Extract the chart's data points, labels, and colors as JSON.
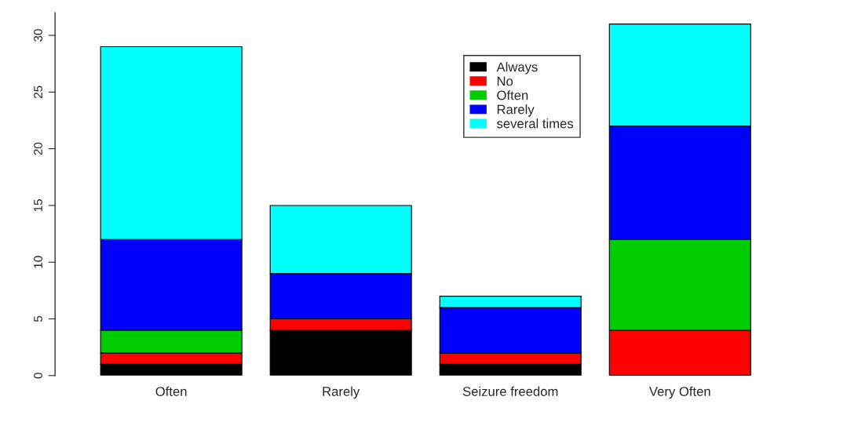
{
  "chart_data": {
    "type": "bar",
    "stacked": true,
    "categories": [
      "Often",
      "Rarely",
      "Seizure freedom",
      "Very Often"
    ],
    "series": [
      {
        "name": "Always",
        "color": "#000000",
        "values": [
          1,
          4,
          1,
          0
        ]
      },
      {
        "name": "No",
        "color": "#ff0000",
        "values": [
          1,
          1,
          1,
          4
        ]
      },
      {
        "name": "Often",
        "color": "#00cd00",
        "values": [
          2,
          0,
          0,
          8
        ]
      },
      {
        "name": "Rarely",
        "color": "#0000ff",
        "values": [
          8,
          4,
          4,
          10
        ]
      },
      {
        "name": "several times",
        "color": "#00ffff",
        "values": [
          17,
          6,
          1,
          9
        ]
      }
    ],
    "ylim": [
      0,
      32
    ],
    "yticks": [
      0,
      5,
      10,
      15,
      20,
      25,
      30
    ],
    "grid": false,
    "legend": "top"
  }
}
